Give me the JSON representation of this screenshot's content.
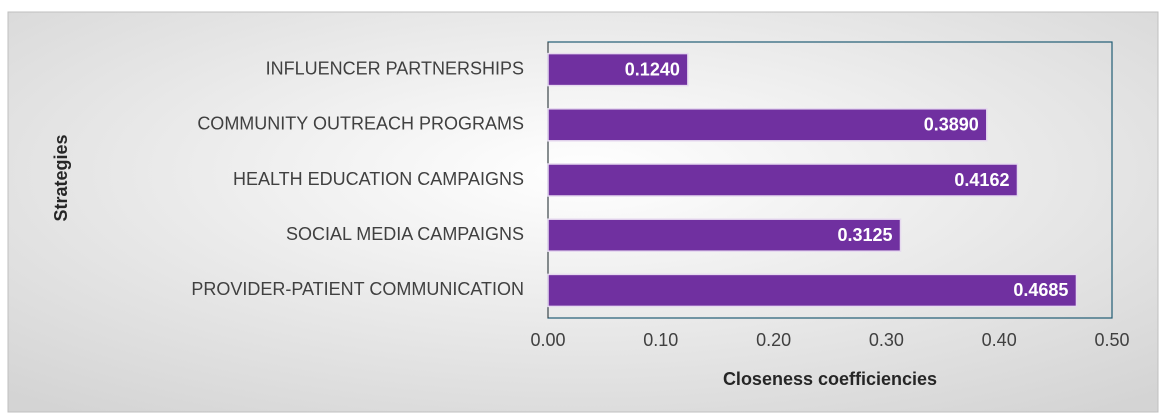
{
  "chart_data": {
    "type": "bar",
    "orientation": "horizontal",
    "categories": [
      "INFLUENCER PARTNERSHIPS",
      "COMMUNITY OUTREACH PROGRAMS",
      "HEALTH EDUCATION CAMPAIGNS",
      "SOCIAL MEDIA CAMPAIGNS",
      "PROVIDER-PATIENT COMMUNICATION"
    ],
    "values": [
      0.124,
      0.389,
      0.4162,
      0.3125,
      0.4685
    ],
    "value_labels": [
      "0.1240",
      "0.3890",
      "0.4162",
      "0.3125",
      "0.4685"
    ],
    "color": "#7030a0",
    "xlabel": "Closeness coefficiencies",
    "ylabel": "Strategies",
    "xlim": [
      0,
      0.5
    ],
    "xticks": [
      {
        "value": 0,
        "label": "0.00"
      },
      {
        "value": 0.1,
        "label": "0.10"
      },
      {
        "value": 0.2,
        "label": "0.20"
      },
      {
        "value": 0.3,
        "label": "0.30"
      },
      {
        "value": 0.4,
        "label": "0.40"
      },
      {
        "value": 0.5,
        "label": "0.50"
      }
    ],
    "grid": false
  }
}
